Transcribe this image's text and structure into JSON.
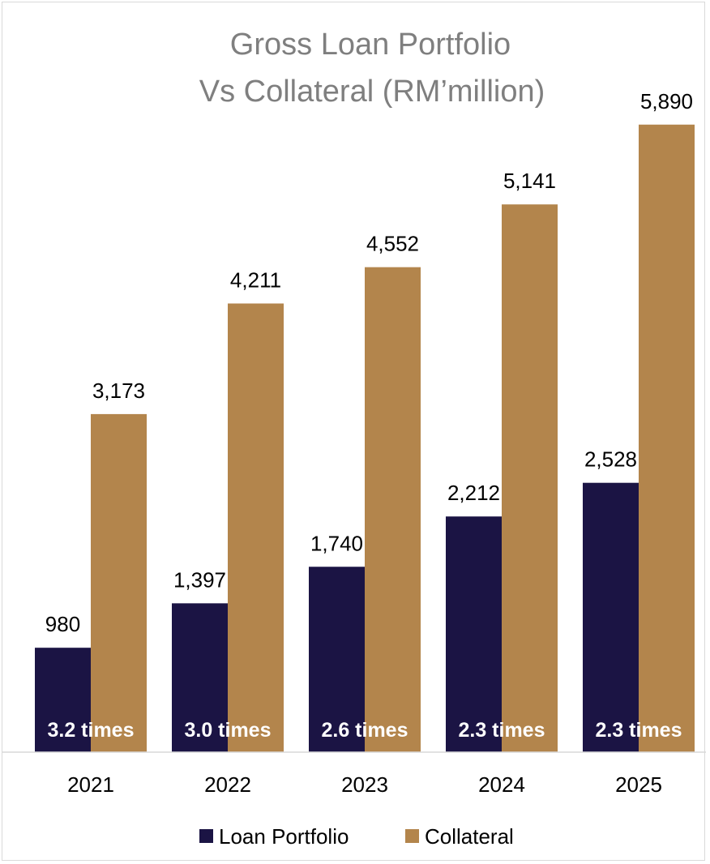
{
  "chart_data": {
    "type": "bar",
    "title_lines": [
      "Gross Loan Portfolio",
      "Vs Collateral (RM’million)"
    ],
    "categories": [
      "2021",
      "2022",
      "2023",
      "2024",
      "2025"
    ],
    "series": [
      {
        "name": "Loan Portfolio",
        "color": "#1b1444",
        "values": [
          980,
          1397,
          1740,
          2212,
          2528
        ],
        "labels": [
          "980",
          "1,397",
          "1,740",
          "2,212",
          "2,528"
        ]
      },
      {
        "name": "Collateral",
        "color": "#b3854c",
        "values": [
          3173,
          4211,
          4552,
          5141,
          5890
        ],
        "labels": [
          "3,173",
          "4,211",
          "4,552",
          "5,141",
          "5,890"
        ]
      }
    ],
    "ratio_labels": [
      "3.2 times",
      "3.0 times",
      "2.6 times",
      "2.3 times",
      "2.3 times"
    ],
    "ylim": [
      0,
      6200
    ],
    "grid": false,
    "legend_position": "bottom"
  }
}
